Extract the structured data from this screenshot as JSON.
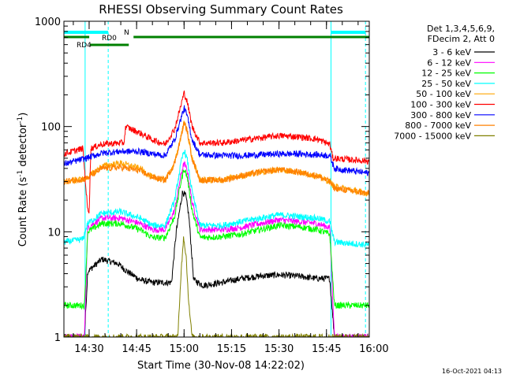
{
  "chart_data": {
    "type": "line",
    "title": "RHESSI Observing Summary Count Rates",
    "xlabel": "Start Time (30-Nov-08 14:22:02)",
    "ylabel_main": "Count Rate (s",
    "ylabel_sup1": "-1",
    "ylabel_mid": " detector",
    "ylabel_sup2": "-1",
    "ylabel_end": ")",
    "yscale": "log",
    "ylim": [
      1,
      1000
    ],
    "xlim_minutes": [
      0,
      96.5
    ],
    "x_ticks": [
      {
        "label": "14:30",
        "t": 7.97
      },
      {
        "label": "14:45",
        "t": 22.97
      },
      {
        "label": "15:00",
        "t": 37.97
      },
      {
        "label": "15:15",
        "t": 52.97
      },
      {
        "label": "15:30",
        "t": 67.97
      },
      {
        "label": "15:45",
        "t": 82.97
      },
      {
        "label": "16:00",
        "t": 97.97
      }
    ],
    "y_ticks": [
      {
        "label": "1",
        "v": 1
      },
      {
        "label": "10",
        "v": 10
      },
      {
        "label": "100",
        "v": 100
      },
      {
        "label": "1000",
        "v": 1000
      }
    ],
    "legend_header": [
      "Det 1,3,4,5,6,9,",
      "FDecim 2, Att 0"
    ],
    "series": [
      {
        "name": "3 - 6 keV",
        "color": "#000000",
        "points": [
          [
            0,
            1
          ],
          [
            6.5,
            1
          ],
          [
            7.5,
            4.2
          ],
          [
            12,
            5.5
          ],
          [
            17,
            5
          ],
          [
            20,
            4.2
          ],
          [
            24,
            3.5
          ],
          [
            28,
            3.3
          ],
          [
            34,
            3.3
          ],
          [
            35.5,
            10
          ],
          [
            37.5,
            24
          ],
          [
            38.5,
            22
          ],
          [
            39.5,
            14
          ],
          [
            41,
            3.5
          ],
          [
            44,
            3.1
          ],
          [
            50,
            3.3
          ],
          [
            56,
            3.6
          ],
          [
            62,
            3.8
          ],
          [
            68,
            3.9
          ],
          [
            74,
            3.8
          ],
          [
            80,
            3.6
          ],
          [
            84,
            3.6
          ],
          [
            85.5,
            1
          ],
          [
            96.5,
            1
          ]
        ]
      },
      {
        "name": "6 - 12 keV",
        "color": "#ff00ff",
        "points": [
          [
            0,
            1
          ],
          [
            6.5,
            1
          ],
          [
            7.5,
            11
          ],
          [
            12,
            13.5
          ],
          [
            18,
            13.5
          ],
          [
            24,
            12
          ],
          [
            28,
            10.5
          ],
          [
            32,
            10.5
          ],
          [
            35,
            16
          ],
          [
            37,
            35
          ],
          [
            38,
            45
          ],
          [
            39,
            38
          ],
          [
            40.5,
            19
          ],
          [
            43,
            10.5
          ],
          [
            50,
            10.5
          ],
          [
            56,
            11
          ],
          [
            62,
            12
          ],
          [
            68,
            13
          ],
          [
            74,
            12.5
          ],
          [
            80,
            12
          ],
          [
            84,
            11
          ],
          [
            85.5,
            1
          ],
          [
            96.5,
            1
          ]
        ]
      },
      {
        "name": "12 - 25 keV",
        "color": "#00ff00",
        "points": [
          [
            0,
            2
          ],
          [
            6.5,
            2
          ],
          [
            7.5,
            10
          ],
          [
            12,
            12
          ],
          [
            18,
            12
          ],
          [
            24,
            10.5
          ],
          [
            28,
            8.8
          ],
          [
            32,
            8.8
          ],
          [
            35,
            14
          ],
          [
            37,
            30
          ],
          [
            38,
            40
          ],
          [
            39,
            33
          ],
          [
            40.5,
            16
          ],
          [
            43,
            8.8
          ],
          [
            50,
            9
          ],
          [
            56,
            9.5
          ],
          [
            62,
            10.5
          ],
          [
            68,
            11.5
          ],
          [
            74,
            11.2
          ],
          [
            80,
            10.5
          ],
          [
            84,
            9.5
          ],
          [
            85.5,
            2
          ],
          [
            96.5,
            2
          ]
        ]
      },
      {
        "name": "25 - 50 keV",
        "color": "#00ffff",
        "points": [
          [
            0,
            8
          ],
          [
            6,
            8.5
          ],
          [
            7.5,
            12
          ],
          [
            12,
            15
          ],
          [
            18,
            15.5
          ],
          [
            24,
            13.5
          ],
          [
            28,
            11.5
          ],
          [
            32,
            11.5
          ],
          [
            35,
            20
          ],
          [
            37,
            45
          ],
          [
            38,
            60
          ],
          [
            39,
            48
          ],
          [
            40.5,
            24
          ],
          [
            43,
            11.5
          ],
          [
            50,
            11.5
          ],
          [
            56,
            12.5
          ],
          [
            62,
            13.5
          ],
          [
            68,
            14.5
          ],
          [
            74,
            14
          ],
          [
            80,
            13.5
          ],
          [
            84,
            12.5
          ],
          [
            85.5,
            8
          ],
          [
            96.5,
            7.5
          ]
        ]
      },
      {
        "name": "50 - 100 keV",
        "color": "#ffa500",
        "points": [
          [
            0,
            30
          ],
          [
            7,
            32
          ],
          [
            12,
            42
          ],
          [
            18,
            45
          ],
          [
            24,
            40
          ],
          [
            28,
            33
          ],
          [
            32,
            31
          ],
          [
            35,
            45
          ],
          [
            37,
            80
          ],
          [
            38,
            110
          ],
          [
            39,
            90
          ],
          [
            40.5,
            50
          ],
          [
            43,
            31
          ],
          [
            50,
            31
          ],
          [
            56,
            34
          ],
          [
            62,
            37
          ],
          [
            68,
            39
          ],
          [
            74,
            37
          ],
          [
            80,
            34
          ],
          [
            84,
            30
          ],
          [
            85.5,
            27
          ],
          [
            96.5,
            23
          ]
        ]
      },
      {
        "name": "100 - 300 keV",
        "color": "#ff0000",
        "points": [
          [
            0,
            55
          ],
          [
            6,
            62
          ],
          [
            7.5,
            16
          ],
          [
            8,
            16
          ],
          [
            8.5,
            62
          ],
          [
            12,
            68
          ],
          [
            18,
            70
          ],
          [
            19,
            70
          ],
          [
            19.5,
            100
          ],
          [
            24,
            87
          ],
          [
            28,
            75
          ],
          [
            32,
            68
          ],
          [
            35,
            95
          ],
          [
            37,
            160
          ],
          [
            38,
            210
          ],
          [
            39,
            170
          ],
          [
            40.5,
            100
          ],
          [
            43,
            70
          ],
          [
            50,
            70
          ],
          [
            56,
            74
          ],
          [
            62,
            78
          ],
          [
            68,
            82
          ],
          [
            74,
            80
          ],
          [
            80,
            76
          ],
          [
            84,
            68
          ],
          [
            85,
            50
          ],
          [
            96.5,
            47
          ]
        ]
      },
      {
        "name": "300 - 800 keV",
        "color": "#0000ff",
        "points": [
          [
            0,
            44
          ],
          [
            7,
            50
          ],
          [
            12,
            56
          ],
          [
            18,
            58
          ],
          [
            24,
            58
          ],
          [
            28,
            55
          ],
          [
            32,
            53
          ],
          [
            35,
            75
          ],
          [
            37,
            120
          ],
          [
            38,
            150
          ],
          [
            39,
            125
          ],
          [
            40.5,
            75
          ],
          [
            43,
            54
          ],
          [
            50,
            53
          ],
          [
            56,
            53
          ],
          [
            62,
            54
          ],
          [
            68,
            55
          ],
          [
            74,
            55
          ],
          [
            80,
            54
          ],
          [
            84,
            53
          ],
          [
            85.5,
            40
          ],
          [
            96.5,
            36
          ]
        ]
      },
      {
        "name": "800 - 7000 keV",
        "color": "#ff8000",
        "points": [
          [
            0,
            30
          ],
          [
            7,
            32
          ],
          [
            12,
            40
          ],
          [
            18,
            41
          ],
          [
            24,
            38
          ],
          [
            28,
            33
          ],
          [
            32,
            31
          ],
          [
            35,
            45
          ],
          [
            37,
            80
          ],
          [
            38,
            110
          ],
          [
            39,
            90
          ],
          [
            40.5,
            50
          ],
          [
            43,
            31
          ],
          [
            50,
            31
          ],
          [
            56,
            34
          ],
          [
            62,
            37
          ],
          [
            68,
            39
          ],
          [
            74,
            37
          ],
          [
            80,
            34
          ],
          [
            84,
            30
          ],
          [
            85.5,
            26
          ],
          [
            96.5,
            23
          ]
        ]
      },
      {
        "name": "7000 - 15000 keV",
        "color": "#808000",
        "points": [
          [
            0,
            1
          ],
          [
            36,
            1
          ],
          [
            37,
            4
          ],
          [
            37.8,
            9
          ],
          [
            38.6,
            6
          ],
          [
            39.5,
            2
          ],
          [
            40.5,
            1
          ],
          [
            96.5,
            1
          ]
        ]
      }
    ],
    "vertical_lines": [
      {
        "t": 6.7,
        "color": "#00ffff",
        "style": "solid"
      },
      {
        "t": 84.4,
        "color": "#00ffff",
        "style": "solid"
      },
      {
        "t": 14.0,
        "color": "#00ffff",
        "style": "dashed"
      },
      {
        "t": 95.3,
        "color": "#00ffff",
        "style": "dashed"
      }
    ],
    "flag_bars": [
      {
        "label": "N",
        "color": "#00ffff",
        "row": 0,
        "segments": [
          [
            0,
            14.0
          ],
          [
            84.4,
            95.3
          ]
        ]
      },
      {
        "label": "RD0",
        "color": "#008000",
        "row": 1,
        "segments": [
          [
            0,
            8
          ],
          [
            22,
            96.5
          ]
        ]
      },
      {
        "label": "RD4",
        "color": "#008000",
        "row": 2,
        "segments": [
          [
            8.2,
            20.5
          ]
        ]
      }
    ]
  },
  "footer_timestamp": "16-Oct-2021 04:13"
}
